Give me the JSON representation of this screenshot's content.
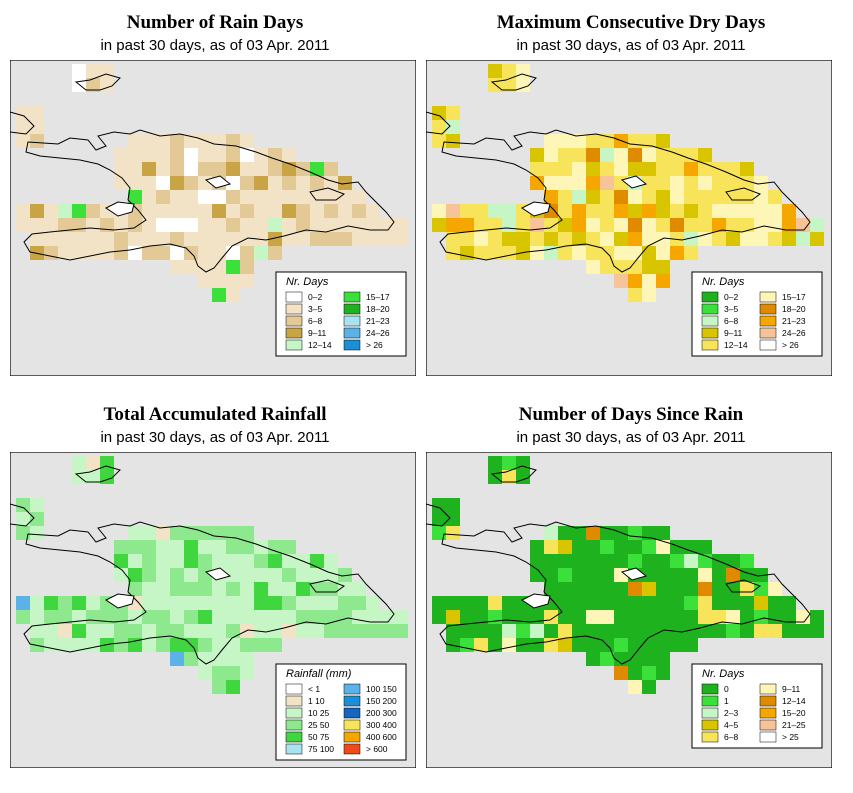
{
  "panels": [
    {
      "id": "rain-days",
      "title": "Number of Rain Days",
      "subtitle": "in past 30 days, as of  03 Apr. 2011",
      "legend_title": "Nr. Days",
      "legend_items": [
        {
          "label": "0–2",
          "color": "#ffffff"
        },
        {
          "label": "3–5",
          "color": "#f3e3c6"
        },
        {
          "label": "6–8",
          "color": "#e2c996"
        },
        {
          "label": "9–11",
          "color": "#c9a444"
        },
        {
          "label": "12–14",
          "color": "#c6f5c6"
        },
        {
          "label": "15–17",
          "color": "#3be03b"
        },
        {
          "label": "18–20",
          "color": "#1fb21f"
        },
        {
          "label": "21–23",
          "color": "#a9e3f0"
        },
        {
          "label": "24–26",
          "color": "#5ab2e6"
        },
        {
          "label": "> 26",
          "color": "#1a8fd6"
        }
      ],
      "palette": [
        "#e4e4e4",
        "#ffffff",
        "#f3e3c6",
        "#e2c996",
        "#c9a444",
        "#c6f5c6",
        "#3be03b"
      ],
      "weights": [
        0,
        6,
        62,
        26,
        6,
        2,
        1
      ]
    },
    {
      "id": "dry-days",
      "title": "Maximum Consecutive Dry Days",
      "subtitle": "in past 30 days, as of  03 Apr. 2011",
      "legend_title": "Nr. Days",
      "legend_items": [
        {
          "label": "0–2",
          "color": "#1fb21f"
        },
        {
          "label": "3–5",
          "color": "#3be03b"
        },
        {
          "label": "6–8",
          "color": "#c6f5c6"
        },
        {
          "label": "9–11",
          "color": "#d9c400"
        },
        {
          "label": "12–14",
          "color": "#f7e45a"
        },
        {
          "label": "15–17",
          "color": "#fdf6b6"
        },
        {
          "label": "18–20",
          "color": "#e08a00"
        },
        {
          "label": "21–23",
          "color": "#f5a700"
        },
        {
          "label": "24–26",
          "color": "#f7c49a"
        },
        {
          "label": "> 26",
          "color": "#ffffff"
        }
      ],
      "palette": [
        "#e4e4e4",
        "#d9c400",
        "#f7e45a",
        "#fdf6b6",
        "#f5a700",
        "#e08a00",
        "#c6f5c6",
        "#f7c49a"
      ],
      "weights": [
        0,
        18,
        38,
        22,
        12,
        3,
        4,
        3
      ]
    },
    {
      "id": "accum-rainfall",
      "title": "Total Accumulated Rainfall",
      "subtitle": "in past 30 days, as of  03 Apr. 2011",
      "legend_title": "Rainfall (mm)",
      "legend_items": [
        {
          "label": "< 1",
          "color": "#ffffff"
        },
        {
          "label": "1  10",
          "color": "#f3e3c6"
        },
        {
          "label": "10  25",
          "color": "#c6f5c6"
        },
        {
          "label": "25  50",
          "color": "#8ee88e"
        },
        {
          "label": "50  75",
          "color": "#3fd63f"
        },
        {
          "label": "75  100",
          "color": "#a9e3f0"
        },
        {
          "label": "100  150",
          "color": "#5ab2e6"
        },
        {
          "label": "150  200",
          "color": "#1a8fd6"
        },
        {
          "label": "200  300",
          "color": "#1466c0"
        },
        {
          "label": "300  400",
          "color": "#f7e45a"
        },
        {
          "label": "400  600",
          "color": "#f5a700"
        },
        {
          "label": "> 600",
          "color": "#f04a1a"
        }
      ],
      "palette": [
        "#e4e4e4",
        "#c6f5c6",
        "#8ee88e",
        "#3fd63f",
        "#f3e3c6",
        "#5ab2e6"
      ],
      "weights": [
        0,
        55,
        30,
        10,
        4,
        1
      ]
    },
    {
      "id": "days-since-rain",
      "title": "Number of Days Since Rain",
      "subtitle": "in past 30 days, as of  03 Apr. 2011",
      "legend_title": "Nr. Days",
      "legend_items": [
        {
          "label": "0",
          "color": "#1fb21f"
        },
        {
          "label": "1",
          "color": "#3be03b"
        },
        {
          "label": "2–3",
          "color": "#c6f5c6"
        },
        {
          "label": "4–5",
          "color": "#d9c400"
        },
        {
          "label": "6–8",
          "color": "#f7e45a"
        },
        {
          "label": "9–11",
          "color": "#fdf6b6"
        },
        {
          "label": "12–14",
          "color": "#e08a00"
        },
        {
          "label": "15–20",
          "color": "#f5a700"
        },
        {
          "label": "21–25",
          "color": "#f7c49a"
        },
        {
          "label": "> 25",
          "color": "#ffffff"
        }
      ],
      "palette": [
        "#e4e4e4",
        "#1fb21f",
        "#3be03b",
        "#f7e45a",
        "#fdf6b6",
        "#c6f5c6",
        "#e08a00",
        "#d9c400"
      ],
      "weights": [
        0,
        70,
        12,
        8,
        4,
        2,
        2,
        2
      ]
    }
  ],
  "colors": {
    "background": "#e4e4e4",
    "outline": "#000000"
  }
}
